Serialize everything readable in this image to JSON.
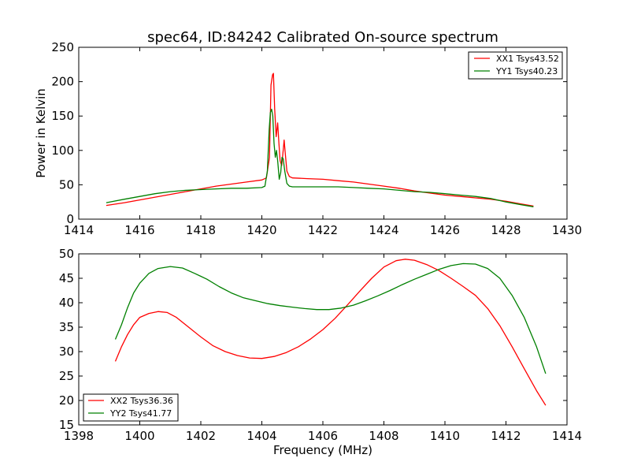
{
  "title": "spec64, ID:84242 Calibrated On-source spectrum",
  "chart_data": [
    {
      "type": "line",
      "xlabel": "",
      "ylabel": "Power in Kelvin",
      "xlim": [
        1414,
        1430
      ],
      "ylim": [
        0,
        250
      ],
      "xticks": [
        1414,
        1416,
        1418,
        1420,
        1422,
        1424,
        1426,
        1428,
        1430
      ],
      "yticks": [
        0,
        50,
        100,
        150,
        200,
        250
      ],
      "grid": false,
      "legend": "top-right",
      "series": [
        {
          "name": "XX1 Tsys43.52",
          "color": "#ff0000",
          "points": [
            [
              1414.9,
              20
            ],
            [
              1415.5,
              24
            ],
            [
              1416,
              28
            ],
            [
              1416.5,
              32
            ],
            [
              1417,
              36
            ],
            [
              1417.5,
              40
            ],
            [
              1418,
              44
            ],
            [
              1418.5,
              48
            ],
            [
              1419,
              51
            ],
            [
              1419.5,
              54
            ],
            [
              1420,
              57
            ],
            [
              1420.15,
              60
            ],
            [
              1420.25,
              90
            ],
            [
              1420.3,
              195
            ],
            [
              1420.35,
              210
            ],
            [
              1420.38,
              212
            ],
            [
              1420.42,
              160
            ],
            [
              1420.47,
              120
            ],
            [
              1420.52,
              140
            ],
            [
              1420.56,
              110
            ],
            [
              1420.6,
              85
            ],
            [
              1420.65,
              78
            ],
            [
              1420.7,
              100
            ],
            [
              1420.73,
              115
            ],
            [
              1420.77,
              95
            ],
            [
              1420.82,
              70
            ],
            [
              1420.9,
              62
            ],
            [
              1421,
              60
            ],
            [
              1421.5,
              59
            ],
            [
              1422,
              58
            ],
            [
              1422.5,
              56
            ],
            [
              1423,
              54
            ],
            [
              1423.5,
              51
            ],
            [
              1424,
              48
            ],
            [
              1424.5,
              45
            ],
            [
              1425,
              41
            ],
            [
              1425.5,
              38
            ],
            [
              1426,
              35
            ],
            [
              1426.5,
              33
            ],
            [
              1427,
              31
            ],
            [
              1427.5,
              29
            ],
            [
              1428,
              26
            ],
            [
              1428.5,
              22
            ],
            [
              1428.9,
              19
            ]
          ]
        },
        {
          "name": "YY1 Tsys40.23",
          "color": "#008000",
          "points": [
            [
              1414.9,
              24
            ],
            [
              1415.5,
              29
            ],
            [
              1416,
              33
            ],
            [
              1416.5,
              37
            ],
            [
              1417,
              40
            ],
            [
              1417.5,
              42
            ],
            [
              1418,
              43
            ],
            [
              1418.5,
              44
            ],
            [
              1419,
              45
            ],
            [
              1419.5,
              45
            ],
            [
              1420,
              46
            ],
            [
              1420.1,
              48
            ],
            [
              1420.18,
              70
            ],
            [
              1420.24,
              130
            ],
            [
              1420.28,
              155
            ],
            [
              1420.32,
              160
            ],
            [
              1420.36,
              150
            ],
            [
              1420.4,
              110
            ],
            [
              1420.44,
              90
            ],
            [
              1420.48,
              100
            ],
            [
              1420.52,
              85
            ],
            [
              1420.57,
              58
            ],
            [
              1420.62,
              68
            ],
            [
              1420.66,
              90
            ],
            [
              1420.7,
              88
            ],
            [
              1420.75,
              70
            ],
            [
              1420.82,
              52
            ],
            [
              1420.9,
              48
            ],
            [
              1421,
              47
            ],
            [
              1421.5,
              47
            ],
            [
              1422,
              47
            ],
            [
              1422.5,
              47
            ],
            [
              1423,
              46
            ],
            [
              1423.5,
              45
            ],
            [
              1424,
              44
            ],
            [
              1424.5,
              42
            ],
            [
              1425,
              40
            ],
            [
              1425.5,
              39
            ],
            [
              1426,
              37
            ],
            [
              1426.5,
              35
            ],
            [
              1427,
              33
            ],
            [
              1427.5,
              30
            ],
            [
              1428,
              25
            ],
            [
              1428.5,
              21
            ],
            [
              1428.9,
              18
            ]
          ]
        }
      ]
    },
    {
      "type": "line",
      "xlabel": "Frequency (MHz)",
      "ylabel": "",
      "xlim": [
        1398,
        1414
      ],
      "ylim": [
        15,
        50
      ],
      "xticks": [
        1398,
        1400,
        1402,
        1404,
        1406,
        1408,
        1410,
        1412,
        1414
      ],
      "yticks": [
        15,
        20,
        25,
        30,
        35,
        40,
        45,
        50
      ],
      "grid": false,
      "legend": "bottom-left",
      "series": [
        {
          "name": "XX2 Tsys36.36",
          "color": "#ff0000",
          "points": [
            [
              1399.2,
              28
            ],
            [
              1399.4,
              31
            ],
            [
              1399.6,
              33.5
            ],
            [
              1399.8,
              35.5
            ],
            [
              1400,
              37
            ],
            [
              1400.3,
              37.8
            ],
            [
              1400.6,
              38.2
            ],
            [
              1400.9,
              38
            ],
            [
              1401.2,
              37
            ],
            [
              1401.6,
              35
            ],
            [
              1402,
              33
            ],
            [
              1402.4,
              31.2
            ],
            [
              1402.8,
              30
            ],
            [
              1403.2,
              29.2
            ],
            [
              1403.6,
              28.7
            ],
            [
              1404,
              28.6
            ],
            [
              1404.4,
              29
            ],
            [
              1404.8,
              29.8
            ],
            [
              1405.2,
              31
            ],
            [
              1405.6,
              32.6
            ],
            [
              1406,
              34.5
            ],
            [
              1406.4,
              36.8
            ],
            [
              1406.8,
              39.5
            ],
            [
              1407.2,
              42.3
            ],
            [
              1407.6,
              45
            ],
            [
              1408,
              47.3
            ],
            [
              1408.4,
              48.6
            ],
            [
              1408.7,
              48.9
            ],
            [
              1409,
              48.7
            ],
            [
              1409.4,
              47.8
            ],
            [
              1409.8,
              46.6
            ],
            [
              1410.2,
              45
            ],
            [
              1410.6,
              43.3
            ],
            [
              1411,
              41.5
            ],
            [
              1411.4,
              38.8
            ],
            [
              1411.8,
              35.3
            ],
            [
              1412.2,
              31
            ],
            [
              1412.6,
              26.5
            ],
            [
              1413,
              22
            ],
            [
              1413.3,
              19
            ]
          ]
        },
        {
          "name": "YY2 Tsys41.77",
          "color": "#008000",
          "points": [
            [
              1399.2,
              32.5
            ],
            [
              1399.4,
              35.5
            ],
            [
              1399.6,
              39
            ],
            [
              1399.8,
              42
            ],
            [
              1400,
              44
            ],
            [
              1400.3,
              46
            ],
            [
              1400.6,
              47
            ],
            [
              1401,
              47.4
            ],
            [
              1401.4,
              47.1
            ],
            [
              1401.8,
              46
            ],
            [
              1402.2,
              44.8
            ],
            [
              1402.6,
              43.3
            ],
            [
              1403,
              42
            ],
            [
              1403.4,
              41
            ],
            [
              1403.8,
              40.4
            ],
            [
              1404.2,
              39.8
            ],
            [
              1404.6,
              39.4
            ],
            [
              1405,
              39.1
            ],
            [
              1405.4,
              38.8
            ],
            [
              1405.8,
              38.6
            ],
            [
              1406.2,
              38.6
            ],
            [
              1406.6,
              38.9
            ],
            [
              1407,
              39.5
            ],
            [
              1407.4,
              40.4
            ],
            [
              1407.8,
              41.4
            ],
            [
              1408.2,
              42.5
            ],
            [
              1408.6,
              43.7
            ],
            [
              1409,
              44.8
            ],
            [
              1409.4,
              45.8
            ],
            [
              1409.8,
              46.8
            ],
            [
              1410.2,
              47.6
            ],
            [
              1410.6,
              48
            ],
            [
              1411,
              47.9
            ],
            [
              1411.4,
              47
            ],
            [
              1411.8,
              45
            ],
            [
              1412.2,
              41.5
            ],
            [
              1412.6,
              37
            ],
            [
              1413,
              31
            ],
            [
              1413.3,
              25.5
            ]
          ]
        }
      ]
    }
  ]
}
